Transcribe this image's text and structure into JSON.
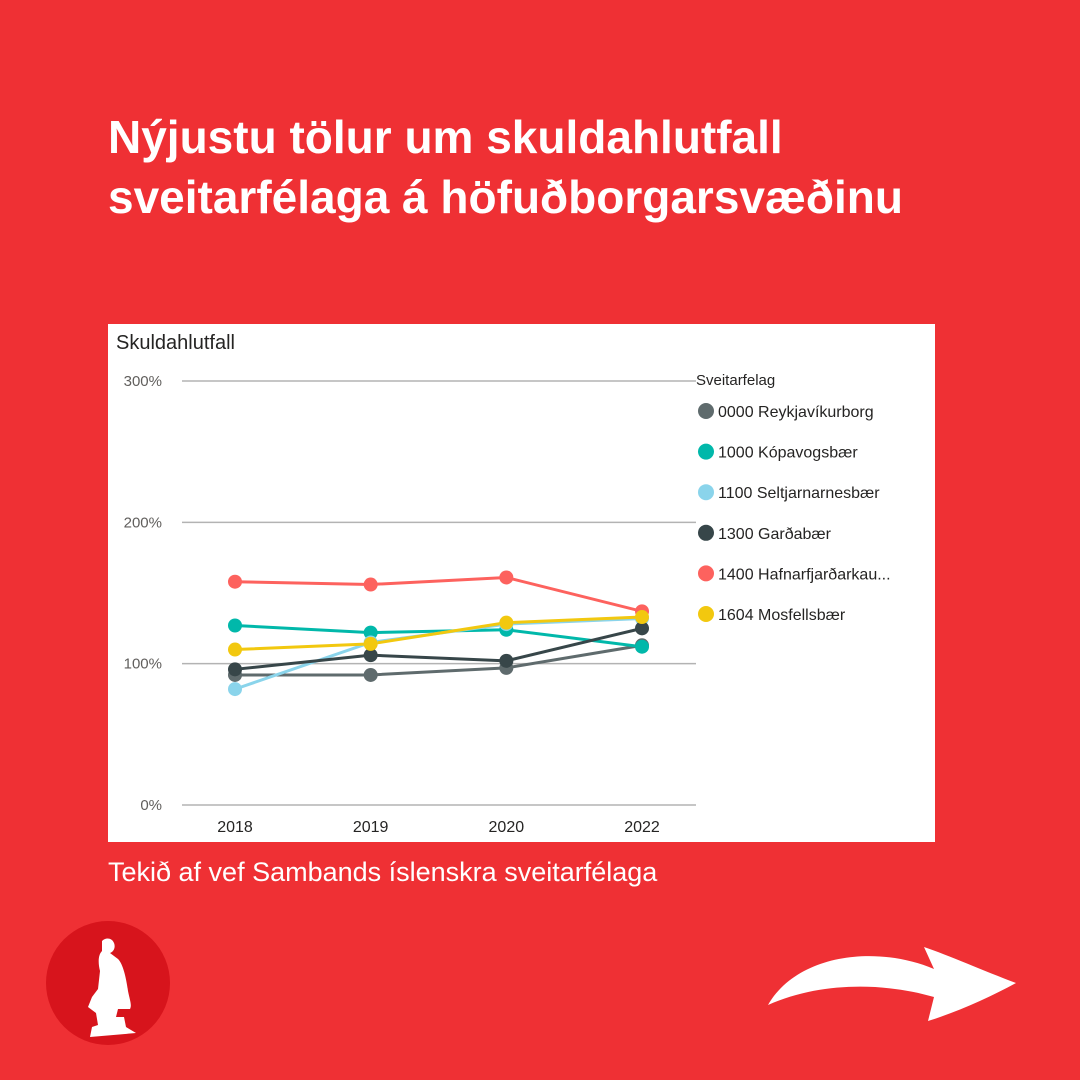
{
  "headline": {
    "line1": "Nýjustu tölur um skuldahlutfall",
    "line2": "sveitarfélaga á höfuðborgarsvæðinu"
  },
  "source_text": "Tekið af vef Sambands íslenskra sveitarfélaga",
  "logo_icon": "statue-logo-icon",
  "next_icon": "curved-arrow-right-icon",
  "colors": {
    "background": "#ef3034",
    "text": "#ffffff",
    "card": "#ffffff",
    "gridline": "#b3b3b3"
  },
  "chart_data": {
    "type": "line",
    "title": "Skuldahlutfall",
    "xlabel": "",
    "ylabel": "",
    "categories": [
      "2018",
      "2019",
      "2020",
      "2022"
    ],
    "y_ticks": [
      "0%",
      "100%",
      "200%",
      "300%"
    ],
    "ylim": [
      0,
      300
    ],
    "grid": true,
    "legend_title": "Sveitarfelag",
    "legend_position": "right",
    "series": [
      {
        "name": "0000 Reykjavíkurborg",
        "color": "#5f6b6d",
        "values": [
          92,
          92,
          97,
          113
        ]
      },
      {
        "name": "1000 Kópavogsbær",
        "color": "#01b8aa",
        "values": [
          127,
          122,
          124,
          112
        ]
      },
      {
        "name": "1100 Seltjarnarnesbær",
        "color": "#8ad4eb",
        "values": [
          82,
          115,
          128,
          132
        ]
      },
      {
        "name": "1300 Garðabær",
        "color": "#374649",
        "values": [
          96,
          106,
          102,
          125
        ]
      },
      {
        "name": "1400 Hafnarfjarðarkau...",
        "color": "#fd625e",
        "values": [
          158,
          156,
          161,
          137
        ]
      },
      {
        "name": "1604 Mosfellsbær",
        "color": "#f2c80f",
        "values": [
          110,
          114,
          129,
          133
        ]
      }
    ]
  }
}
